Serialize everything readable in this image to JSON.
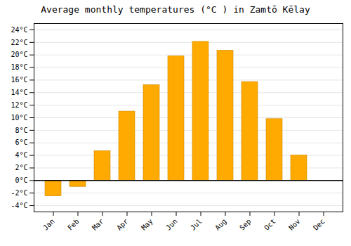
{
  "chart_data": {
    "type": "bar",
    "title": "Average monthly temperatures (°C ) in Zamtō Kēlay",
    "categories": [
      "Jan",
      "Feb",
      "Mar",
      "Apr",
      "May",
      "Jun",
      "Jul",
      "Aug",
      "Sep",
      "Oct",
      "Nov",
      "Dec"
    ],
    "values": [
      -2.5,
      -1.0,
      4.7,
      11.0,
      15.2,
      19.8,
      22.1,
      20.7,
      15.7,
      9.8,
      4.0,
      0.0
    ],
    "color": "#FFAA00",
    "ylim": [
      -5,
      25
    ],
    "yticks": [
      {
        "value": -4,
        "label": "-4°C"
      },
      {
        "value": -2,
        "label": "-2°C"
      },
      {
        "value": 0,
        "label": "0°C"
      },
      {
        "value": 2,
        "label": "2°C"
      },
      {
        "value": 4,
        "label": "4°C"
      },
      {
        "value": 6,
        "label": "6°C"
      },
      {
        "value": 8,
        "label": "8°C"
      },
      {
        "value": 10,
        "label": "10°C"
      },
      {
        "value": 12,
        "label": "12°C"
      },
      {
        "value": 14,
        "label": "14°C"
      },
      {
        "value": 16,
        "label": "16°C"
      },
      {
        "value": 18,
        "label": "18°C"
      },
      {
        "value": 20,
        "label": "20°C"
      },
      {
        "value": 22,
        "label": "22°C"
      },
      {
        "value": 24,
        "label": "24°C"
      }
    ],
    "grid": true
  }
}
